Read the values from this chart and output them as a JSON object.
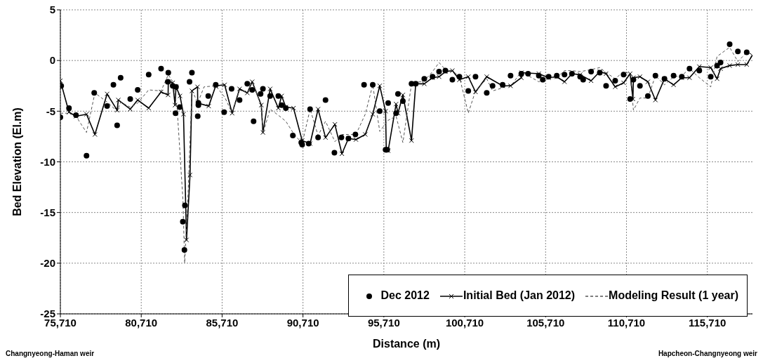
{
  "chart_data": {
    "type": "scatter",
    "xlabel": "Distance (m)",
    "ylabel": "Bed Elevation (El.m)",
    "xlim": [
      75710,
      118500
    ],
    "xticks": [
      {
        "value": 75710,
        "label": "75,710"
      },
      {
        "value": 80710,
        "label": "80,710"
      },
      {
        "value": 85710,
        "label": "85,710"
      },
      {
        "value": 90710,
        "label": "90,710"
      },
      {
        "value": 95710,
        "label": "95,710"
      },
      {
        "value": 100710,
        "label": "100,710"
      },
      {
        "value": 105710,
        "label": "105,710"
      },
      {
        "value": 110710,
        "label": "110,710"
      },
      {
        "value": 115710,
        "label": "115,710"
      }
    ],
    "ylim": [
      -25,
      5
    ],
    "yticks": [
      -25,
      -20,
      -15,
      -10,
      -5,
      0,
      5
    ],
    "grid": true,
    "legend": "bottom right",
    "annotations": [
      "Changnyeong-Haman weir",
      "Hapcheon-Changnyeong weir"
    ],
    "series": [
      {
        "name": "Dec 2012",
        "marker": "circle",
        "color": "#000000",
        "x": [
          75710,
          75760,
          76243,
          76676,
          77326,
          77803,
          78600,
          78990,
          79220,
          79436,
          80030,
          80490,
          81170,
          81937,
          82383,
          82353,
          82656,
          82860,
          82830,
          83090,
          83280,
          83410,
          83380,
          83696,
          83843,
          84246,
          84246,
          84203,
          84853,
          85316,
          85836,
          86296,
          86790,
          87266,
          87570,
          87656,
          88090,
          88233,
          88680,
          89186,
          89390,
          89650,
          90083,
          90603,
          90660,
          91063,
          91150,
          91643,
          92103,
          92653,
          93086,
          93520,
          93953,
          94486,
          95023,
          95456,
          95816,
          95916,
          95976,
          96466,
          96583,
          96886,
          97420,
          97680,
          98210,
          98720,
          99123,
          99513,
          99946,
          100380,
          100930,
          101376,
          102070,
          102432,
          103052,
          103543,
          104208,
          104626,
          105290,
          105535,
          105898,
          106400,
          106878,
          107340,
          107846,
          108033,
          108523,
          109060,
          109450,
          110013,
          110533,
          110936,
          111140,
          111543,
          112033,
          112500,
          113060,
          113623,
          114130,
          114607,
          115213,
          115920,
          116310,
          116527,
          117090,
          117597,
          118144
        ],
        "values": [
          -5.6,
          -2.5,
          -4.7,
          -5.4,
          -9.4,
          -3.2,
          -4.5,
          -2.4,
          -6.4,
          -1.7,
          -3.8,
          -2.9,
          -1.4,
          -0.8,
          -1.2,
          -2.1,
          -2.5,
          -2.6,
          -5.2,
          -4.6,
          -15.9,
          -14.3,
          -18.7,
          -2.1,
          -1.2,
          -4.2,
          -4.4,
          -5.5,
          -3.5,
          -2.4,
          -5.1,
          -2.8,
          -3.9,
          -2.3,
          -2.9,
          -6.0,
          -3.3,
          -2.8,
          -3.5,
          -3.5,
          -4.4,
          -4.7,
          -7.4,
          -8.1,
          -8.3,
          -8.2,
          -4.8,
          -7.6,
          -3.9,
          -9.1,
          -7.6,
          -7.7,
          -7.3,
          -2.4,
          -2.4,
          -5.0,
          -8.8,
          -8.8,
          -4.2,
          -5.2,
          -3.3,
          -4.0,
          -2.3,
          -2.3,
          -1.8,
          -1.6,
          -1.1,
          -1.0,
          -1.9,
          -1.6,
          -3.0,
          -1.6,
          -3.2,
          -2.5,
          -2.4,
          -1.5,
          -1.3,
          -1.3,
          -1.5,
          -1.9,
          -1.6,
          -1.5,
          -1.4,
          -1.3,
          -1.6,
          -1.9,
          -1.1,
          -1.2,
          -2.5,
          -2.0,
          -1.4,
          -3.8,
          -1.9,
          -2.5,
          -3.5,
          -1.5,
          -1.8,
          -1.5,
          -1.6,
          -0.8,
          -1.0,
          -1.6,
          -0.5,
          -0.2,
          1.6,
          0.9,
          0.8
        ]
      },
      {
        "name": "Initial Bed (Jan 2012)",
        "type": "line",
        "marker": "cross",
        "line_style": "solid",
        "color": "#000000",
        "x": [
          75710,
          76243,
          76676,
          77326,
          77846,
          78600,
          79220,
          79293,
          80030,
          80490,
          81170,
          81937,
          82370,
          82383,
          82656,
          82800,
          82860,
          83106,
          83323,
          83510,
          83726,
          83843,
          84190,
          84203,
          84883,
          85316,
          85866,
          86330,
          86790,
          87266,
          87570,
          88133,
          88233,
          88680,
          89186,
          89390,
          89650,
          90126,
          90660,
          91150,
          91643,
          92103,
          92683,
          93116,
          93520,
          93983,
          94560,
          95023,
          95456,
          95816,
          95860,
          95976,
          96466,
          96583,
          96886,
          97420,
          97680,
          98210,
          98720,
          99123,
          99513,
          99946,
          100380,
          100930,
          101376,
          102070,
          103052,
          103543,
          104208,
          104220,
          105290,
          105898,
          106400,
          106878,
          107340,
          107846,
          108523,
          109060,
          109450,
          110013,
          110533,
          110936,
          111110,
          111140,
          111543,
          112033,
          112500,
          113060,
          113623,
          114130,
          114607,
          115213,
          115920,
          116310,
          116527,
          117090,
          117597,
          118144,
          118490
        ],
        "values": [
          -2.0,
          -5.1,
          -5.5,
          -5.3,
          -7.3,
          -3.3,
          -4.9,
          -3.9,
          -4.8,
          -3.9,
          -4.7,
          -3.1,
          -3.4,
          -2.1,
          -2.2,
          -4.4,
          -2.6,
          -3.5,
          -5.3,
          -17.7,
          -11.3,
          -3.0,
          -2.6,
          -4.2,
          -4.5,
          -2.5,
          -2.4,
          -5.2,
          -2.8,
          -3.2,
          -2.1,
          -4.4,
          -7.1,
          -2.8,
          -4.7,
          -3.5,
          -4.6,
          -4.7,
          -7.9,
          -8.2,
          -4.8,
          -7.6,
          -6.3,
          -9.2,
          -7.7,
          -7.8,
          -7.3,
          -5.3,
          -2.5,
          -5.0,
          -8.8,
          -8.9,
          -4.3,
          -5.2,
          -3.4,
          -7.9,
          -2.3,
          -2.3,
          -1.7,
          -1.6,
          -1.1,
          -1.0,
          -1.9,
          -1.6,
          -3.1,
          -1.6,
          -2.5,
          -2.5,
          -1.7,
          -1.2,
          -1.3,
          -1.7,
          -1.6,
          -2.1,
          -1.3,
          -1.4,
          -2.0,
          -1.1,
          -1.3,
          -2.6,
          -2.2,
          -1.3,
          -3.8,
          -1.7,
          -1.6,
          -2.1,
          -3.9,
          -1.8,
          -2.4,
          -1.7,
          -1.7,
          -0.6,
          -0.7,
          -1.8,
          -0.8,
          -0.5,
          -0.4,
          -0.4,
          0.5
        ]
      },
      {
        "name": "Modeling Result (1 year)",
        "type": "line",
        "marker": "none",
        "line_style": "dashed",
        "color": "#555555",
        "x": [
          75710,
          76243,
          76676,
          77326,
          77846,
          78600,
          79220,
          79436,
          80030,
          80490,
          81170,
          81937,
          82383,
          82656,
          82800,
          82933,
          83290,
          83393,
          83580,
          83843,
          84203,
          84593,
          85316,
          85866,
          86330,
          86790,
          87266,
          87570,
          88133,
          88233,
          88680,
          89186,
          89650,
          90126,
          90660,
          91150,
          91643,
          92103,
          92683,
          93116,
          93520,
          93983,
          94560,
          95023,
          95456,
          95976,
          96466,
          96886,
          97420,
          98210,
          98720,
          99123,
          99513,
          99946,
          100380,
          100930,
          101376,
          102070,
          102432,
          103052,
          103660,
          104208,
          105290,
          105898,
          106400,
          106878,
          107340,
          107846,
          108523,
          109060,
          109450,
          110013,
          110533,
          110936,
          111140,
          111543,
          112033,
          112500,
          113060,
          113623,
          114130,
          114607,
          115213,
          115920,
          116310,
          117090,
          117597,
          118144,
          118490
        ],
        "values": [
          -5.2,
          -5.2,
          -5.5,
          -7.1,
          -3.2,
          -4.1,
          -5.0,
          -4.1,
          -4.6,
          -4.2,
          -2.9,
          -3.0,
          -1.4,
          -2.1,
          -3.5,
          -4.8,
          -13.8,
          -20.0,
          -14.2,
          -2.9,
          -4.2,
          -2.6,
          -2.5,
          -3.6,
          -5.2,
          -2.9,
          -3.2,
          -2.0,
          -4.5,
          -7.2,
          -4.8,
          -5.4,
          -6.0,
          -7.2,
          -8.2,
          -4.8,
          -7.4,
          -6.0,
          -8.0,
          -7.3,
          -7.3,
          -7.3,
          -5.3,
          -2.4,
          -7.0,
          -5.9,
          -5.5,
          -8.1,
          -2.3,
          -2.0,
          -1.1,
          -0.2,
          -0.9,
          -1.0,
          -1.6,
          -5.2,
          -3.0,
          -1.8,
          -3.0,
          -2.7,
          -2.3,
          -1.1,
          -2.1,
          -1.7,
          -1.7,
          -1.0,
          -1.0,
          -1.1,
          -0.9,
          -0.7,
          -1.2,
          -1.8,
          -1.1,
          -1.3,
          -4.9,
          -3.7,
          -3.7,
          -1.5,
          -2.4,
          -1.6,
          -1.5,
          -0.8,
          -1.7,
          -2.6,
          0.4,
          1.3,
          -0.1,
          0.8,
          0.6
        ]
      }
    ]
  }
}
